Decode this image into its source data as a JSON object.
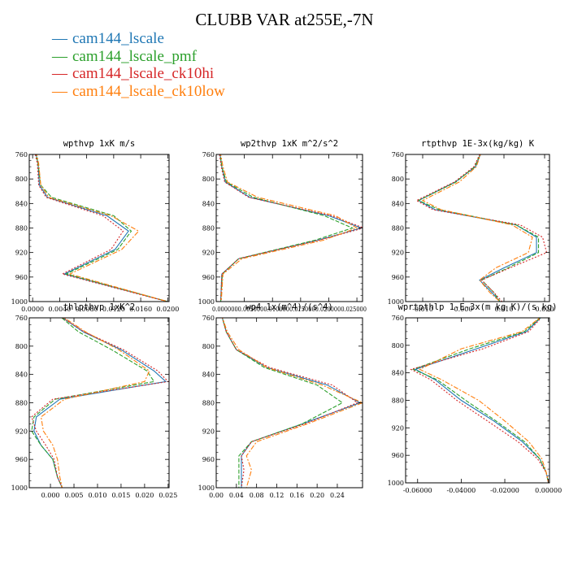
{
  "title": "CLUBB VAR at255E,-7N",
  "legend": [
    {
      "name": "cam144_lscale",
      "color": "#1f77b4"
    },
    {
      "name": "cam144_lscale_pmf",
      "color": "#2ca02c"
    },
    {
      "name": "cam144_lscale_ck10hi",
      "color": "#d62728"
    },
    {
      "name": "cam144_lscale_ck10low",
      "color": "#ff7f0e"
    }
  ],
  "chart_data": [
    {
      "type": "line",
      "title": "wpthvp  1xK m/s",
      "xlim": [
        -0.0005,
        0.0202
      ],
      "ylim": [
        760,
        1000
      ],
      "y_reversed": true,
      "xticks": [
        {
          "v": 0.0,
          "label": "0.0000"
        },
        {
          "v": 0.004,
          "label": "0.0040"
        },
        {
          "v": 0.008,
          "label": "0.0080"
        },
        {
          "v": 0.012,
          "label": "0.0120"
        },
        {
          "v": 0.016,
          "label": "0.0160"
        },
        {
          "v": 0.02,
          "label": "0.0200"
        }
      ],
      "yticks": [
        760,
        800,
        840,
        880,
        920,
        960,
        1000
      ],
      "pressure": [
        755,
        775,
        810,
        830,
        860,
        885,
        915,
        955,
        1000
      ],
      "series": [
        {
          "name": "cam144_lscale",
          "values": [
            0.0004,
            0.0008,
            0.001,
            0.0022,
            0.011,
            0.0142,
            0.0122,
            0.0047,
            0.02
          ]
        },
        {
          "name": "cam144_lscale_pmf",
          "values": [
            0.0004,
            0.0008,
            0.0012,
            0.0028,
            0.012,
            0.0146,
            0.0126,
            0.005,
            0.02
          ]
        },
        {
          "name": "cam144_lscale_ck10hi",
          "values": [
            0.0003,
            0.0007,
            0.0009,
            0.002,
            0.0104,
            0.0134,
            0.0116,
            0.0044,
            0.0199
          ]
        },
        {
          "name": "cam144_lscale_ck10low",
          "values": [
            0.0005,
            0.0009,
            0.0012,
            0.0024,
            0.0116,
            0.0157,
            0.0132,
            0.0055,
            0.02
          ]
        }
      ]
    },
    {
      "type": "line",
      "title": "wp2thvp  1xK m^2/s^2",
      "xlim": [
        0.0,
        0.026
      ],
      "ylim": [
        760,
        1000
      ],
      "y_reversed": true,
      "xticks": [
        {
          "v": 0.0,
          "label": "0.000"
        },
        {
          "v": 0.005,
          "label": "0.005"
        },
        {
          "v": 0.01,
          "label": "0.010"
        },
        {
          "v": 0.015,
          "label": "0.015"
        },
        {
          "v": 0.02,
          "label": "0.020"
        },
        {
          "v": 0.025,
          "label": "0.025"
        }
      ],
      "xtick_compact": "0.0000000.0050000.0100000.0150000.0200000.025000",
      "yticks": [
        760,
        800,
        840,
        880,
        920,
        960,
        1000
      ],
      "pressure": [
        755,
        780,
        805,
        830,
        860,
        880,
        900,
        930,
        955,
        1000
      ],
      "series": [
        {
          "name": "cam144_lscale",
          "values": [
            0.0006,
            0.001,
            0.0016,
            0.006,
            0.02,
            0.0258,
            0.018,
            0.004,
            0.001,
            0.0008
          ]
        },
        {
          "name": "cam144_lscale_pmf",
          "values": [
            0.0006,
            0.001,
            0.0018,
            0.0066,
            0.0192,
            0.0242,
            0.0175,
            0.004,
            0.0011,
            0.0008
          ]
        },
        {
          "name": "cam144_lscale_ck10hi",
          "values": [
            0.0005,
            0.0009,
            0.0015,
            0.0058,
            0.0205,
            0.0262,
            0.0182,
            0.004,
            0.001,
            0.0008
          ]
        },
        {
          "name": "cam144_lscale_ck10low",
          "values": [
            0.0007,
            0.0012,
            0.002,
            0.0074,
            0.0212,
            0.025,
            0.019,
            0.0046,
            0.0012,
            0.0009
          ]
        }
      ]
    },
    {
      "type": "line",
      "title": "rtpthvp  1E-3x(kg/kg) K",
      "xlim": [
        -0.0142,
        0.0212
      ],
      "ylim": [
        760,
        1000
      ],
      "y_reversed": true,
      "xticks": [
        {
          "v": -0.01,
          "label": "-0.010"
        },
        {
          "v": 0.0,
          "label": "0.000"
        },
        {
          "v": 0.01,
          "label": "0.010"
        },
        {
          "v": 0.02,
          "label": "0.020"
        }
      ],
      "yticks": [
        760,
        800,
        840,
        880,
        920,
        960,
        1000
      ],
      "pressure": [
        755,
        780,
        805,
        835,
        850,
        875,
        895,
        920,
        945,
        965,
        985,
        1000
      ],
      "series": [
        {
          "name": "cam144_lscale",
          "values": [
            0.0045,
            0.003,
            -0.002,
            -0.011,
            -0.007,
            0.013,
            0.018,
            0.018,
            0.01,
            0.004,
            0.007,
            0.009
          ]
        },
        {
          "name": "cam144_lscale_pmf",
          "values": [
            0.0045,
            0.0028,
            -0.0018,
            -0.011,
            -0.006,
            0.013,
            0.0185,
            0.0185,
            0.011,
            0.0045,
            0.0075,
            0.009
          ]
        },
        {
          "name": "cam144_lscale_ck10hi",
          "values": [
            0.0044,
            0.0026,
            -0.0022,
            -0.0115,
            -0.0075,
            0.014,
            0.0195,
            0.0205,
            0.0115,
            0.0045,
            0.0075,
            0.0095
          ]
        },
        {
          "name": "cam144_lscale_ck10low",
          "values": [
            0.0045,
            0.0032,
            -0.001,
            -0.01,
            -0.0055,
            0.012,
            0.017,
            0.016,
            0.008,
            0.004,
            0.0065,
            0.009
          ]
        }
      ]
    },
    {
      "type": "line",
      "title": "thlpthvp  1xK^2",
      "xlim": [
        -0.0045,
        0.0252
      ],
      "ylim": [
        760,
        1000
      ],
      "y_reversed": true,
      "xticks": [
        {
          "v": 0.0,
          "label": "0.000"
        },
        {
          "v": 0.005,
          "label": "0.005"
        },
        {
          "v": 0.01,
          "label": "0.010"
        },
        {
          "v": 0.015,
          "label": "0.015"
        },
        {
          "v": 0.02,
          "label": "0.020"
        },
        {
          "v": 0.025,
          "label": "0.025"
        }
      ],
      "yticks": [
        760,
        800,
        840,
        880,
        920,
        960,
        1000
      ],
      "pressure": [
        755,
        780,
        805,
        835,
        850,
        875,
        900,
        920,
        940,
        960,
        985,
        1000
      ],
      "series": [
        {
          "name": "cam144_lscale",
          "values": [
            0.0015,
            0.007,
            0.015,
            0.022,
            0.0245,
            0.002,
            -0.003,
            -0.0035,
            -0.002,
            0.0005,
            0.0015,
            0.0025
          ]
        },
        {
          "name": "cam144_lscale_pmf",
          "values": [
            0.0015,
            0.006,
            0.013,
            0.0205,
            0.022,
            0.001,
            -0.0035,
            -0.004,
            -0.002,
            0.0005,
            0.0015,
            0.0025
          ]
        },
        {
          "name": "cam144_lscale_ck10hi",
          "values": [
            0.0014,
            0.0072,
            0.0155,
            0.0228,
            0.025,
            0.0005,
            -0.004,
            -0.003,
            -0.001,
            0.0008,
            0.0015,
            0.0025
          ]
        },
        {
          "name": "cam144_lscale_ck10low",
          "values": [
            0.0018,
            0.0075,
            0.0145,
            0.021,
            0.02,
            0.003,
            -0.002,
            -0.0015,
            0.0005,
            0.0015,
            0.002,
            0.0025
          ]
        }
      ]
    },
    {
      "type": "line",
      "title": "wp4  1x(m^4)/(s^4)",
      "xlim": [
        0.0,
        0.29
      ],
      "ylim": [
        760,
        1000
      ],
      "y_reversed": true,
      "xticks": [
        {
          "v": 0.0,
          "label": "0.00"
        },
        {
          "v": 0.04,
          "label": "0.04"
        },
        {
          "v": 0.08,
          "label": "0.08"
        },
        {
          "v": 0.12,
          "label": "0.12"
        },
        {
          "v": 0.16,
          "label": "0.16"
        },
        {
          "v": 0.2,
          "label": "0.20"
        },
        {
          "v": 0.24,
          "label": "0.24"
        }
      ],
      "yticks": [
        760,
        800,
        840,
        880,
        920,
        960,
        1000
      ],
      "pressure": [
        755,
        780,
        805,
        830,
        855,
        880,
        910,
        935,
        955,
        975,
        1000
      ],
      "series": [
        {
          "name": "cam144_lscale",
          "values": [
            0.01,
            0.02,
            0.04,
            0.1,
            0.22,
            0.285,
            0.17,
            0.07,
            0.05,
            0.05,
            0.05
          ]
        },
        {
          "name": "cam144_lscale_pmf",
          "values": [
            0.01,
            0.02,
            0.04,
            0.095,
            0.2,
            0.25,
            0.17,
            0.07,
            0.045,
            0.045,
            0.045
          ]
        },
        {
          "name": "cam144_lscale_ck10hi",
          "values": [
            0.01,
            0.02,
            0.04,
            0.105,
            0.23,
            0.28,
            0.175,
            0.07,
            0.05,
            0.055,
            0.05
          ]
        },
        {
          "name": "cam144_lscale_ck10low",
          "values": [
            0.01,
            0.022,
            0.045,
            0.1,
            0.21,
            0.29,
            0.18,
            0.08,
            0.06,
            0.07,
            0.06
          ]
        }
      ]
    },
    {
      "type": "line",
      "title": "wprtpthlp  1-E-3x(m kg K)/(s kg)",
      "xlim": [
        -0.0655,
        0.0005
      ],
      "ylim": [
        760,
        1000
      ],
      "y_reversed": true,
      "xticks": [
        {
          "v": -0.06,
          "label": "-0.06000"
        },
        {
          "v": -0.04,
          "label": "-0.04000"
        },
        {
          "v": -0.02,
          "label": "-0.02000"
        },
        {
          "v": 0.0,
          "label": "0.00000"
        }
      ],
      "yticks": [
        760,
        800,
        840,
        880,
        920,
        960,
        1000
      ],
      "pressure": [
        755,
        780,
        805,
        835,
        850,
        880,
        910,
        940,
        965,
        985,
        1000
      ],
      "series": [
        {
          "name": "cam144_lscale",
          "values": [
            -0.002,
            -0.01,
            -0.033,
            -0.061,
            -0.052,
            -0.04,
            -0.025,
            -0.012,
            -0.004,
            -0.001,
            0.0
          ]
        },
        {
          "name": "cam144_lscale_pmf",
          "values": [
            -0.002,
            -0.011,
            -0.036,
            -0.062,
            -0.051,
            -0.038,
            -0.024,
            -0.011,
            -0.004,
            -0.001,
            0.0
          ]
        },
        {
          "name": "cam144_lscale_ck10hi",
          "values": [
            -0.002,
            -0.009,
            -0.03,
            -0.063,
            -0.054,
            -0.042,
            -0.028,
            -0.014,
            -0.005,
            -0.001,
            0.0
          ]
        },
        {
          "name": "cam144_lscale_ck10low",
          "values": [
            -0.002,
            -0.012,
            -0.04,
            -0.059,
            -0.049,
            -0.032,
            -0.02,
            -0.009,
            -0.003,
            -0.001,
            0.0
          ]
        }
      ]
    }
  ]
}
